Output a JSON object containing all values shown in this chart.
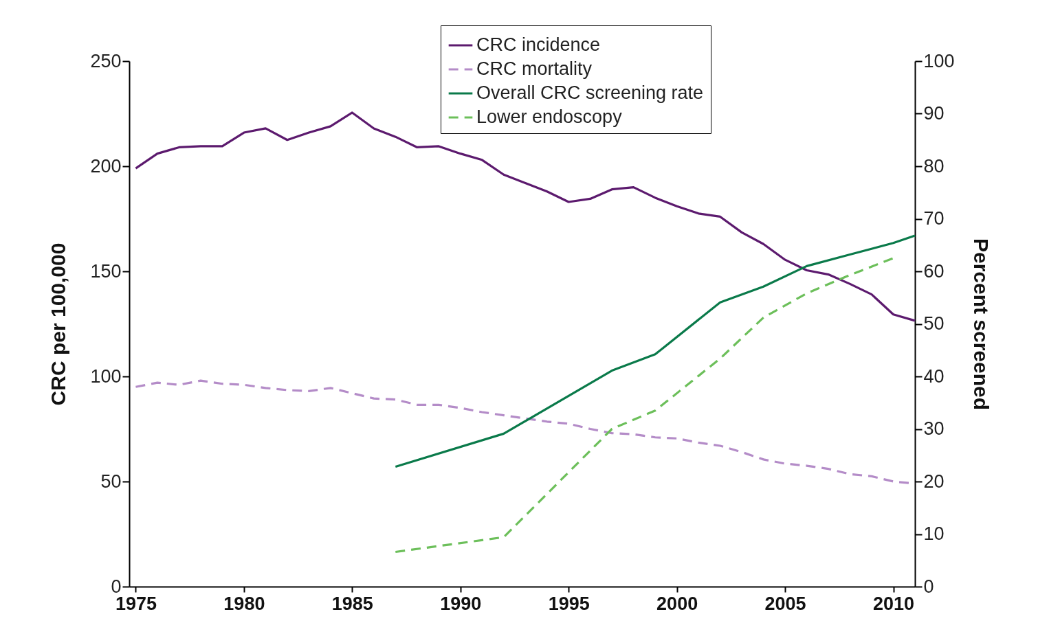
{
  "chart_data": {
    "type": "line",
    "xlabel": null,
    "ylabel": "CRC per 100,000",
    "y2label": "Percent screened",
    "xlim": [
      1974.7,
      2011
    ],
    "xticks": [
      1975,
      1980,
      1985,
      1990,
      1995,
      2000,
      2005,
      2010
    ],
    "ylim": [
      0,
      250
    ],
    "yticks": [
      0,
      50,
      100,
      150,
      200,
      250
    ],
    "y2lim": [
      0,
      100
    ],
    "y2ticks": [
      0,
      10,
      20,
      30,
      40,
      50,
      60,
      70,
      80,
      90,
      100
    ],
    "legend": "top right",
    "grid": false,
    "series": [
      {
        "name": "CRC incidence",
        "color": "#5c1a6e",
        "line_style": "solid",
        "x": [
          1975,
          1976,
          1977,
          1978,
          1979,
          1980,
          1981,
          1982,
          1983,
          1984,
          1985,
          1986,
          1987,
          1988,
          1989,
          1990,
          1991,
          1992,
          1993,
          1994,
          1995,
          1996,
          1997,
          1998,
          1999,
          2000,
          2001,
          2002,
          2003,
          2004,
          2005,
          2006,
          2007,
          2008,
          2009,
          2010,
          2011
        ],
        "values": [
          199,
          206,
          209,
          209.5,
          209.5,
          216,
          218,
          212.5,
          216,
          219,
          225.5,
          218,
          214,
          209,
          209.5,
          206,
          203,
          196,
          192,
          188,
          183,
          184.5,
          189,
          190,
          185,
          181,
          177.5,
          176,
          168.5,
          163,
          155.5,
          150.5,
          148.5,
          144,
          139,
          129.5,
          126.5
        ]
      },
      {
        "name": "CRC mortality",
        "color": "#b48cc8",
        "line_style": "dashed",
        "x": [
          1975,
          1976,
          1977,
          1978,
          1979,
          1980,
          1981,
          1982,
          1983,
          1984,
          1985,
          1986,
          1987,
          1988,
          1989,
          1990,
          1991,
          1992,
          1993,
          1994,
          1995,
          1996,
          1997,
          1998,
          1999,
          2000,
          2001,
          2002,
          2003,
          2004,
          2005,
          2006,
          2007,
          2008,
          2009,
          2010,
          2011
        ],
        "values": [
          95,
          97,
          96,
          98,
          96.5,
          96,
          94.5,
          93.5,
          93,
          94.5,
          92,
          89.5,
          89,
          86.5,
          86.5,
          85,
          83,
          81.5,
          80,
          78.5,
          77.5,
          75,
          73,
          72.5,
          71,
          70.5,
          68.5,
          67,
          64,
          60.5,
          58.5,
          57.5,
          56,
          53.5,
          52.5,
          50,
          49
        ]
      },
      {
        "name": "Overall CRC screening rate",
        "color": "#0a7a4a",
        "line_style": "solid",
        "axis": "y2",
        "x": [
          1987,
          1992,
          1997,
          1999,
          2002,
          2004,
          2006,
          2008,
          2010,
          2011
        ],
        "values": [
          22.8,
          29.1,
          41.1,
          44.2,
          54.1,
          57.1,
          61,
          63.2,
          65.4,
          66.8
        ]
      },
      {
        "name": "Lower endoscopy",
        "color": "#6cbf5a",
        "line_style": "dashed",
        "axis": "y2",
        "x": [
          1987,
          1992,
          1997,
          1999,
          2002,
          2004,
          2006,
          2008,
          2010
        ],
        "values": [
          6.6,
          9.4,
          30,
          33.5,
          43.4,
          51.2,
          55.8,
          59.3,
          62.5
        ]
      }
    ]
  }
}
